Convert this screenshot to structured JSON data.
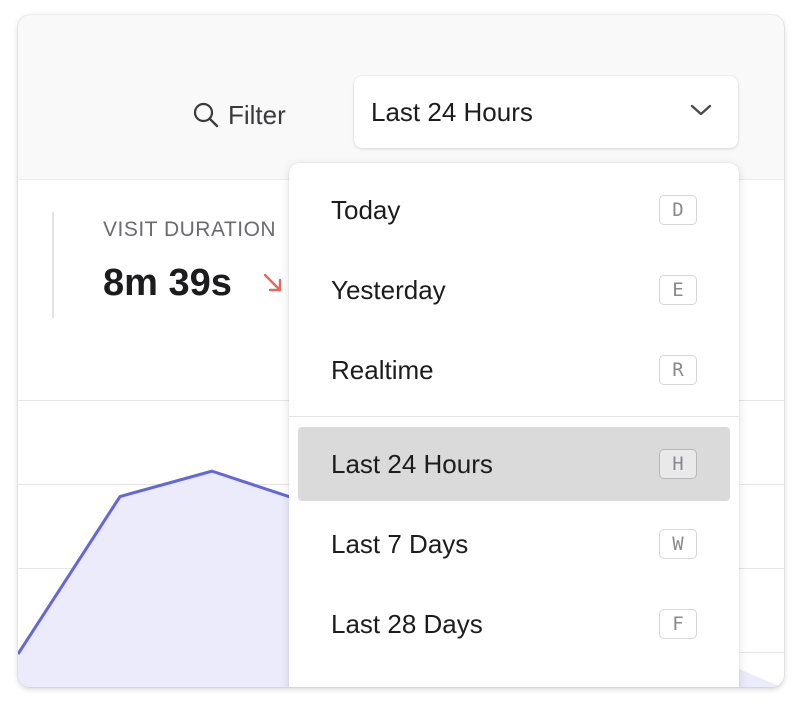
{
  "toolbar": {
    "filter_label": "Filter",
    "search_icon": "search-icon",
    "period_select": {
      "value": "Last 24 Hours",
      "chevron_icon": "chevron-down-icon"
    }
  },
  "metric": {
    "label": "VISIT DURATION",
    "value": "8m 39s",
    "trend": "down",
    "trend_icon": "arrow-down-right-icon",
    "trend_color": "#e06a5d"
  },
  "chart_data": {
    "type": "area",
    "series": [
      {
        "values": [
          0,
          62,
          72,
          60
        ]
      }
    ],
    "ylim": [
      0,
      100
    ],
    "grid": true,
    "line_color": "#6466de",
    "fill_color": "#ecebfb"
  },
  "dropdown": {
    "options": [
      {
        "label": "Today",
        "shortcut": "D"
      },
      {
        "label": "Yesterday",
        "shortcut": "E"
      },
      {
        "label": "Realtime",
        "shortcut": "R"
      },
      {
        "label": "Last 24 Hours",
        "shortcut": "H",
        "selected": true
      },
      {
        "label": "Last 7 Days",
        "shortcut": "W"
      },
      {
        "label": "Last 28 Days",
        "shortcut": "F"
      }
    ]
  }
}
